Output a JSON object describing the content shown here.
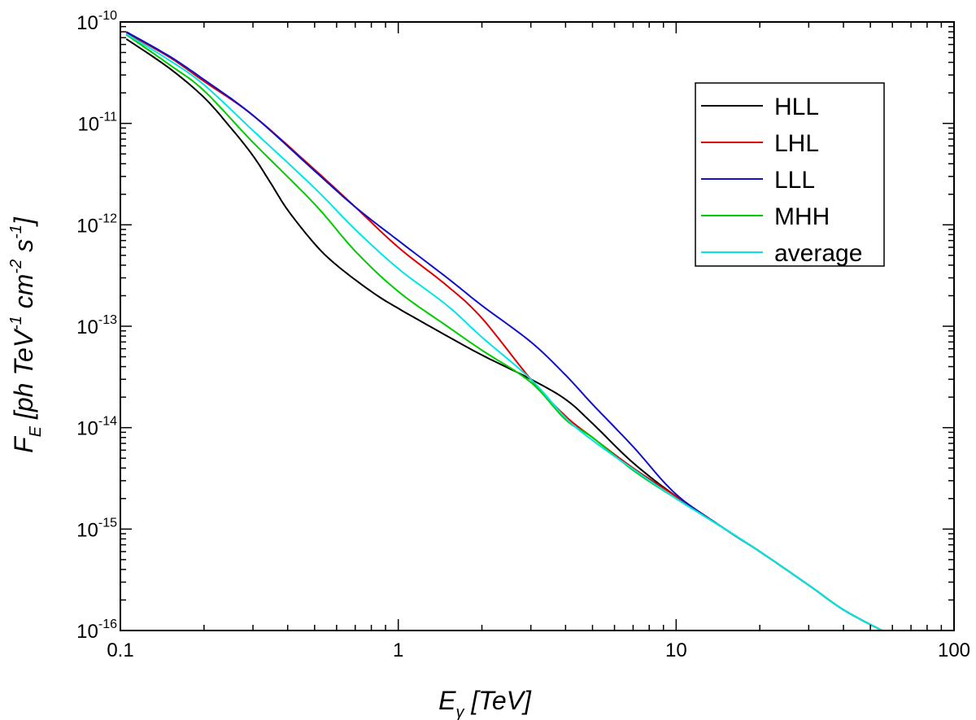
{
  "chart_data": {
    "type": "line",
    "xscale": "log",
    "yscale": "log",
    "xlim": [
      0.1,
      100
    ],
    "ylim": [
      1e-16,
      1e-10
    ],
    "xticks": [
      {
        "value": 0.1,
        "label": "0.1"
      },
      {
        "value": 1,
        "label": "1"
      },
      {
        "value": 10,
        "label": "10"
      },
      {
        "value": 100,
        "label": "100"
      }
    ],
    "yticks": [
      {
        "value": 1e-10,
        "base": "10",
        "exp": "-10"
      },
      {
        "value": 1e-11,
        "base": "10",
        "exp": "-11"
      },
      {
        "value": 1e-12,
        "base": "10",
        "exp": "-12"
      },
      {
        "value": 1e-13,
        "base": "10",
        "exp": "-13"
      },
      {
        "value": 1e-14,
        "base": "10",
        "exp": "-14"
      },
      {
        "value": 1e-15,
        "base": "10",
        "exp": "-15"
      },
      {
        "value": 1e-16,
        "base": "10",
        "exp": "-16"
      }
    ],
    "xlabel": {
      "main": "E",
      "sub": "γ",
      "rest": " [TeV]"
    },
    "ylabel": {
      "p1": "F",
      "sub": "E",
      "p2": " [ph TeV",
      "e1": "-1",
      "p3": " cm",
      "e2": "-2",
      "p4": " s",
      "e3": "-1",
      "p5": "]"
    },
    "legend_position": "top-right",
    "series": [
      {
        "name": "HLL",
        "color": "#000000",
        "points": [
          [
            0.105,
            6.8e-11
          ],
          [
            0.15,
            3.5e-11
          ],
          [
            0.2,
            1.8e-11
          ],
          [
            0.25,
            9e-12
          ],
          [
            0.3,
            4.8e-12
          ],
          [
            0.35,
            2.5e-12
          ],
          [
            0.4,
            1.4e-12
          ],
          [
            0.5,
            6.5e-13
          ],
          [
            0.6,
            4e-13
          ],
          [
            0.8,
            2.2e-13
          ],
          [
            1,
            1.5e-13
          ],
          [
            1.5,
            8e-14
          ],
          [
            2,
            5.2e-14
          ],
          [
            3,
            3e-14
          ],
          [
            4,
            1.9e-14
          ],
          [
            5,
            1.1e-14
          ],
          [
            7,
            4.5e-15
          ],
          [
            10,
            2.1e-15
          ],
          [
            15,
            1e-15
          ],
          [
            20,
            6e-16
          ],
          [
            30,
            2.8e-16
          ],
          [
            40,
            1.6e-16
          ],
          [
            55,
            1e-16
          ]
        ]
      },
      {
        "name": "LHL",
        "color": "#e00000",
        "points": [
          [
            0.105,
            7.8e-11
          ],
          [
            0.15,
            4.5e-11
          ],
          [
            0.2,
            2.6e-11
          ],
          [
            0.3,
            1.2e-11
          ],
          [
            0.5,
            3.5e-12
          ],
          [
            0.7,
            1.5e-12
          ],
          [
            1,
            6e-13
          ],
          [
            1.5,
            2.5e-13
          ],
          [
            2,
            1.2e-13
          ],
          [
            3,
            3e-14
          ],
          [
            4,
            1.3e-14
          ],
          [
            5,
            8e-15
          ],
          [
            7,
            4e-15
          ],
          [
            10,
            2.1e-15
          ],
          [
            15,
            1e-15
          ],
          [
            20,
            6e-16
          ],
          [
            30,
            2.8e-16
          ],
          [
            40,
            1.6e-16
          ],
          [
            55,
            1e-16
          ]
        ]
      },
      {
        "name": "LLL",
        "color": "#1010c8",
        "points": [
          [
            0.105,
            8e-11
          ],
          [
            0.15,
            4.6e-11
          ],
          [
            0.2,
            2.7e-11
          ],
          [
            0.3,
            1.2e-11
          ],
          [
            0.5,
            3.4e-12
          ],
          [
            0.7,
            1.5e-12
          ],
          [
            1,
            7e-13
          ],
          [
            1.5,
            3e-13
          ],
          [
            2,
            1.6e-13
          ],
          [
            3,
            7e-14
          ],
          [
            4,
            3.3e-14
          ],
          [
            5,
            1.7e-14
          ],
          [
            7,
            6.5e-15
          ],
          [
            10,
            2.2e-15
          ],
          [
            15,
            1e-15
          ],
          [
            20,
            6e-16
          ],
          [
            30,
            2.8e-16
          ],
          [
            40,
            1.6e-16
          ],
          [
            55,
            1e-16
          ]
        ]
      },
      {
        "name": "MHH",
        "color": "#00cc00",
        "points": [
          [
            0.105,
            7.5e-11
          ],
          [
            0.15,
            3.8e-11
          ],
          [
            0.2,
            2.1e-11
          ],
          [
            0.3,
            6.5e-12
          ],
          [
            0.5,
            1.6e-12
          ],
          [
            0.7,
            5.5e-13
          ],
          [
            1,
            2.2e-13
          ],
          [
            1.5,
            1e-13
          ],
          [
            2,
            5.8e-14
          ],
          [
            3,
            2.8e-14
          ],
          [
            4,
            1.2e-14
          ],
          [
            5,
            8e-15
          ],
          [
            7,
            3.8e-15
          ],
          [
            10,
            2e-15
          ],
          [
            15,
            1e-15
          ],
          [
            20,
            6e-16
          ],
          [
            30,
            2.8e-16
          ],
          [
            40,
            1.6e-16
          ],
          [
            55,
            1e-16
          ]
        ]
      },
      {
        "name": "average",
        "color": "#00e5e5",
        "points": [
          [
            0.105,
            7.6e-11
          ],
          [
            0.15,
            4.2e-11
          ],
          [
            0.2,
            2.4e-11
          ],
          [
            0.3,
            8.5e-12
          ],
          [
            0.5,
            2.3e-12
          ],
          [
            0.7,
            9e-13
          ],
          [
            1,
            3.7e-13
          ],
          [
            1.5,
            1.6e-13
          ],
          [
            2,
            7.8e-14
          ],
          [
            3,
            3e-14
          ],
          [
            4,
            1.25e-14
          ],
          [
            5,
            7.5e-15
          ],
          [
            7,
            3.9e-15
          ],
          [
            10,
            2e-15
          ],
          [
            15,
            1e-15
          ],
          [
            20,
            6e-16
          ],
          [
            30,
            2.8e-16
          ],
          [
            40,
            1.6e-16
          ],
          [
            55,
            1e-16
          ]
        ]
      }
    ]
  }
}
